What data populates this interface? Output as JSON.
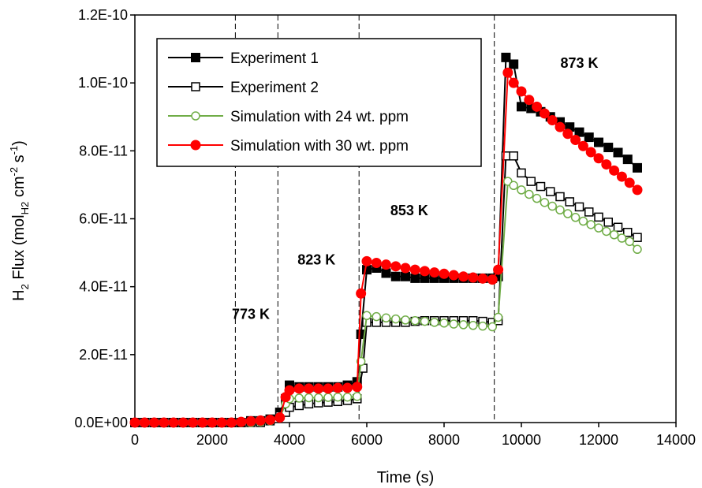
{
  "chart_data": {
    "type": "scatter",
    "xlabel": "Time (s)",
    "ylabel_parts": [
      "H",
      "2",
      " Flux (mol",
      "H2",
      " cm",
      "-2",
      " s",
      "-1",
      ")"
    ],
    "xlim": [
      0,
      14000
    ],
    "ylim": [
      0,
      1.2e-10
    ],
    "x_ticks": [
      0,
      2000,
      4000,
      6000,
      8000,
      10000,
      12000,
      14000
    ],
    "x_tick_labels": [
      "0",
      "2000",
      "4000",
      "6000",
      "8000",
      "10000",
      "12000",
      "14000"
    ],
    "y_ticks": [
      0,
      2e-11,
      4e-11,
      6e-11,
      8e-11,
      1e-10,
      1.2e-10
    ],
    "y_tick_labels": [
      "0.0E+00",
      "2.0E-11",
      "4.0E-11",
      "6.0E-11",
      "8.0E-11",
      "1.0E-10",
      "1.2E-10"
    ],
    "grid": false,
    "legend_position": "top-left",
    "vlines": [
      2600,
      3700,
      5800,
      9300
    ],
    "annotations": [
      {
        "text": "773 K",
        "x": 3000,
        "y": 3.05e-11
      },
      {
        "text": "823 K",
        "x": 4700,
        "y": 4.65e-11
      },
      {
        "text": "853 K",
        "x": 7100,
        "y": 6.1e-11
      },
      {
        "text": "873 K",
        "x": 11500,
        "y": 1.045e-10
      }
    ],
    "series": [
      {
        "name": "Experiment 1",
        "color": "#000000",
        "marker": "square-filled",
        "x": [
          0,
          250,
          500,
          750,
          1000,
          1250,
          1500,
          1750,
          2000,
          2250,
          2500,
          2750,
          3000,
          3250,
          3500,
          3750,
          3900,
          4000,
          4250,
          4500,
          4750,
          5000,
          5250,
          5500,
          5750,
          5850,
          6000,
          6250,
          6500,
          6750,
          7000,
          7250,
          7500,
          7750,
          8000,
          8250,
          8500,
          8750,
          9000,
          9250,
          9400,
          9600,
          9800,
          10000,
          10250,
          10500,
          10750,
          11000,
          11250,
          11500,
          11750,
          12000,
          12250,
          12500,
          12750,
          13000
        ],
        "y": [
          0,
          0,
          0,
          0,
          0,
          0,
          0,
          0,
          0,
          0,
          0,
          0,
          5e-13,
          5e-13,
          1e-12,
          3e-12,
          7e-12,
          1.1e-11,
          1.05e-11,
          1.05e-11,
          1.05e-11,
          1.05e-11,
          1.05e-11,
          1.1e-11,
          1.2e-11,
          2.6e-11,
          4.5e-11,
          4.55e-11,
          4.4e-11,
          4.3e-11,
          4.3e-11,
          4.25e-11,
          4.25e-11,
          4.25e-11,
          4.25e-11,
          4.25e-11,
          4.25e-11,
          4.25e-11,
          4.25e-11,
          4.25e-11,
          4.3e-11,
          1.075e-10,
          1.055e-10,
          9.3e-11,
          9.25e-11,
          9.15e-11,
          9e-11,
          8.85e-11,
          8.7e-11,
          8.55e-11,
          8.4e-11,
          8.25e-11,
          8.1e-11,
          7.95e-11,
          7.75e-11,
          7.5e-11
        ]
      },
      {
        "name": "Experiment 2",
        "color": "#000000",
        "marker": "square-open",
        "x": [
          0,
          250,
          500,
          750,
          1000,
          1250,
          1500,
          1750,
          2000,
          2250,
          2500,
          2750,
          3000,
          3250,
          3500,
          3750,
          3900,
          4000,
          4250,
          4500,
          4750,
          5000,
          5250,
          5500,
          5750,
          5900,
          6000,
          6250,
          6500,
          6750,
          7000,
          7250,
          7500,
          7750,
          8000,
          8250,
          8500,
          8750,
          9000,
          9250,
          9400,
          9600,
          9800,
          10000,
          10250,
          10500,
          10750,
          11000,
          11250,
          11500,
          11750,
          12000,
          12250,
          12500,
          12750,
          13000
        ],
        "y": [
          0,
          0,
          0,
          0,
          0,
          0,
          0,
          0,
          0,
          0,
          0,
          0,
          0,
          0,
          5e-13,
          2e-12,
          3e-12,
          4.5e-12,
          5e-12,
          5.5e-12,
          5.8e-12,
          6e-12,
          6.2e-12,
          6.5e-12,
          7e-12,
          1.6e-11,
          2.95e-11,
          2.95e-11,
          2.95e-11,
          2.95e-11,
          2.95e-11,
          2.98e-11,
          3e-11,
          3e-11,
          3e-11,
          3e-11,
          3e-11,
          3e-11,
          2.98e-11,
          2.95e-11,
          3e-11,
          7.85e-11,
          7.85e-11,
          7.35e-11,
          7.1e-11,
          6.95e-11,
          6.8e-11,
          6.65e-11,
          6.5e-11,
          6.35e-11,
          6.2e-11,
          6.05e-11,
          5.9e-11,
          5.75e-11,
          5.6e-11,
          5.45e-11
        ]
      },
      {
        "name": "Simulation with 24 wt. ppm",
        "color": "#70ad47",
        "marker": "circle-open",
        "x": [
          0,
          250,
          500,
          750,
          1000,
          1250,
          1500,
          1750,
          2000,
          2250,
          2500,
          2750,
          3000,
          3250,
          3500,
          3750,
          3900,
          4000,
          4250,
          4500,
          4750,
          5000,
          5250,
          5500,
          5750,
          5850,
          6000,
          6250,
          6500,
          6750,
          7000,
          7250,
          7500,
          7750,
          8000,
          8250,
          8500,
          8750,
          9000,
          9250,
          9400,
          9650,
          9800,
          10000,
          10200,
          10400,
          10600,
          10800,
          11000,
          11200,
          11400,
          11600,
          11800,
          12000,
          12200,
          12400,
          12600,
          12800,
          13000
        ],
        "y": [
          0,
          0,
          0,
          0,
          0,
          0,
          0,
          0,
          0,
          0,
          0,
          0,
          0,
          2e-13,
          5e-13,
          1.5e-12,
          5.5e-12,
          7e-12,
          7.2e-12,
          7.3e-12,
          7.3e-12,
          7.4e-12,
          7.5e-12,
          7.5e-12,
          7.7e-12,
          1.8e-11,
          3.15e-11,
          3.12e-11,
          3.08e-11,
          3.05e-11,
          3.02e-11,
          3e-11,
          2.98e-11,
          2.95e-11,
          2.93e-11,
          2.9e-11,
          2.88e-11,
          2.86e-11,
          2.84e-11,
          2.82e-11,
          3.1e-11,
          7.1e-11,
          6.98e-11,
          6.85e-11,
          6.72e-11,
          6.6e-11,
          6.48e-11,
          6.37e-11,
          6.26e-11,
          6.15e-11,
          6.04e-11,
          5.93e-11,
          5.83e-11,
          5.73e-11,
          5.63e-11,
          5.53e-11,
          5.43e-11,
          5.33e-11,
          5.1e-11
        ]
      },
      {
        "name": "Simulation with 30 wt. ppm",
        "color": "#ff0000",
        "marker": "circle-filled",
        "x": [
          0,
          250,
          500,
          750,
          1000,
          1250,
          1500,
          1750,
          2000,
          2250,
          2500,
          2750,
          3000,
          3250,
          3500,
          3750,
          3900,
          4000,
          4250,
          4500,
          4750,
          5000,
          5250,
          5500,
          5750,
          5850,
          6000,
          6250,
          6500,
          6750,
          7000,
          7250,
          7500,
          7750,
          8000,
          8250,
          8500,
          8750,
          9000,
          9250,
          9400,
          9650,
          9800,
          10000,
          10200,
          10400,
          10600,
          10800,
          11000,
          11200,
          11400,
          11600,
          11800,
          12000,
          12200,
          12400,
          12600,
          12800,
          13000
        ],
        "y": [
          0,
          0,
          0,
          0,
          0,
          0,
          0,
          0,
          0,
          0,
          0,
          2e-13,
          4e-13,
          6e-13,
          8e-13,
          1.5e-12,
          7.5e-12,
          9.5e-12,
          1e-11,
          1e-11,
          1e-11,
          1e-11,
          1.02e-11,
          1.02e-11,
          1.05e-11,
          3.8e-11,
          4.75e-11,
          4.7e-11,
          4.65e-11,
          4.6e-11,
          4.55e-11,
          4.5e-11,
          4.46e-11,
          4.42e-11,
          4.38e-11,
          4.34e-11,
          4.3e-11,
          4.27e-11,
          4.24e-11,
          4.21e-11,
          4.5e-11,
          1.03e-10,
          1e-10,
          9.75e-11,
          9.5e-11,
          9.3e-11,
          9.1e-11,
          8.9e-11,
          8.7e-11,
          8.5e-11,
          8.32e-11,
          8.14e-11,
          7.96e-11,
          7.78e-11,
          7.6e-11,
          7.42e-11,
          7.24e-11,
          7.06e-11,
          6.85e-11
        ]
      }
    ]
  }
}
